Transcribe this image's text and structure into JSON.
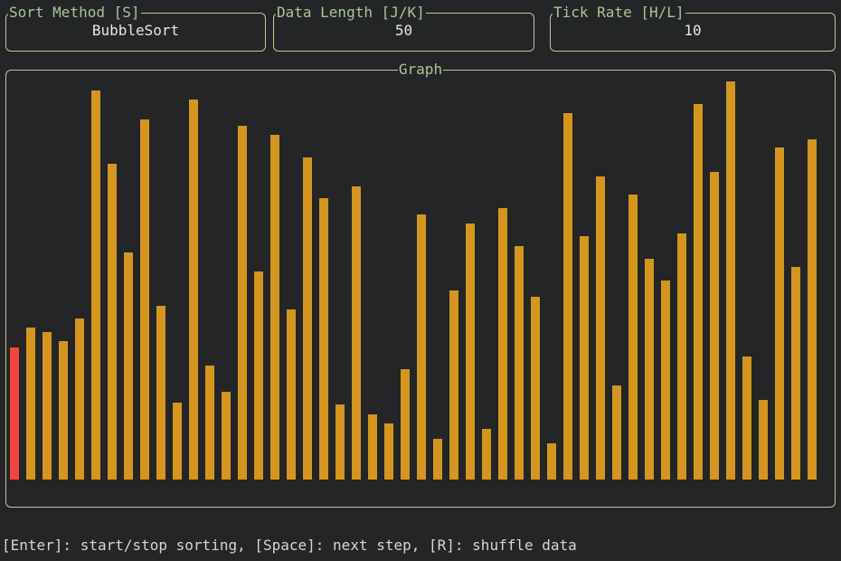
{
  "sort_method": {
    "title": "Sort Method [S]",
    "value": "BubbleSort"
  },
  "data_length": {
    "title": "Data Length [J/K]",
    "value": "50"
  },
  "tick_rate": {
    "title": "Tick Rate [H/L]",
    "value": "10"
  },
  "graph": {
    "title": "Graph",
    "active_index": 0,
    "colors": {
      "bar": "#d4961e",
      "active": "#f0463c"
    },
    "values": [
      146,
      168,
      163,
      153,
      178,
      430,
      349,
      251,
      398,
      192,
      85,
      420,
      126,
      97,
      391,
      230,
      381,
      188,
      356,
      311,
      83,
      324,
      72,
      62,
      122,
      293,
      45,
      209,
      283,
      56,
      300,
      258,
      202,
      40,
      405,
      269,
      335,
      104,
      315,
      244,
      220,
      272,
      415,
      340,
      440,
      136,
      88,
      367,
      235,
      376
    ]
  },
  "help": {
    "text": "[Enter]: start/stop sorting, [Space]: next step, [R]: shuffle data"
  }
}
